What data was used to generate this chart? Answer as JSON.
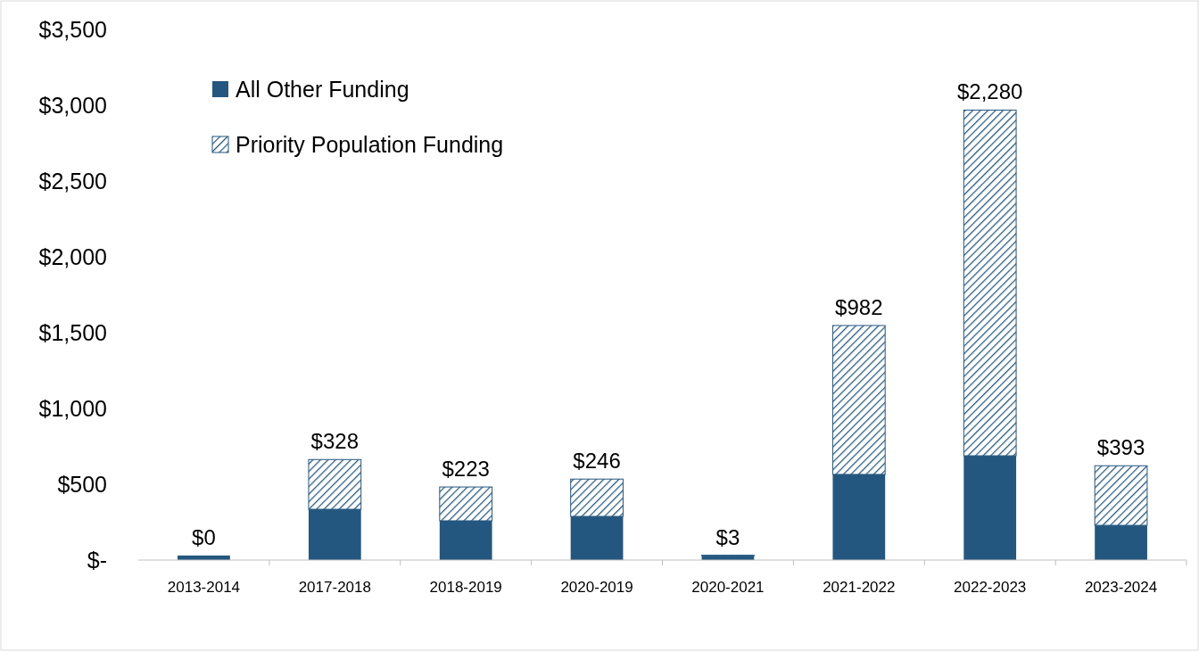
{
  "chart_data": {
    "type": "bar",
    "stacked": true,
    "categories": [
      "2013-2014",
      "2017-2018",
      "2018-2019",
      "2020-2019",
      "2020-2021",
      "2021-2022",
      "2022-2023",
      "2023-2024"
    ],
    "series": [
      {
        "name": "All Other Funding",
        "color": "#24577f",
        "values": [
          30,
          335,
          259,
          288,
          29,
          565,
          688,
          229
        ]
      },
      {
        "name": "Priority Population Funding",
        "color": "#24577f",
        "values": [
          0,
          328,
          223,
          246,
          3,
          982,
          2280,
          393
        ],
        "value_labels": [
          "$0",
          "$328",
          "$223",
          "$246",
          "$3",
          "$982",
          "$2,280",
          "$393"
        ]
      }
    ],
    "ylim": [
      0,
      3500
    ],
    "yticks": [
      {
        "value": 0,
        "label": "$-"
      },
      {
        "value": 500,
        "label": "$500"
      },
      {
        "value": 1000,
        "label": "$1,000"
      },
      {
        "value": 1500,
        "label": "$1,500"
      },
      {
        "value": 2000,
        "label": "$2,000"
      },
      {
        "value": 2500,
        "label": "$2,500"
      },
      {
        "value": 3000,
        "label": "$3,000"
      },
      {
        "value": 3500,
        "label": "$3,500"
      }
    ],
    "grid": false,
    "legend": "top left"
  }
}
